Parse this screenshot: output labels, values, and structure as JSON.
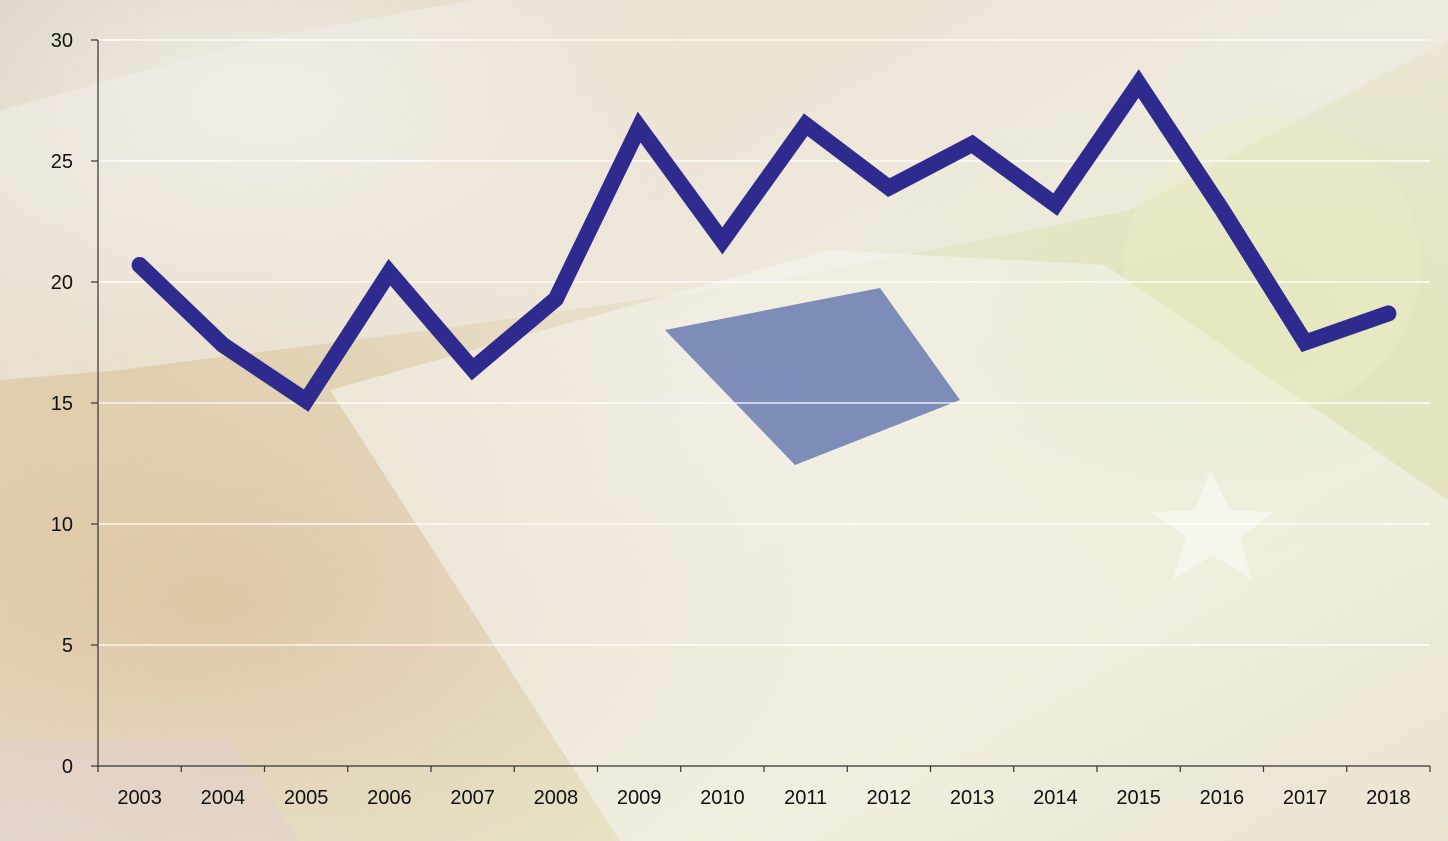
{
  "chart_data": {
    "type": "line",
    "title": "",
    "xlabel": "",
    "ylabel": "",
    "categories": [
      "2003",
      "2004",
      "2005",
      "2006",
      "2007",
      "2008",
      "2009",
      "2010",
      "2011",
      "2012",
      "2013",
      "2014",
      "2015",
      "2016",
      "2017",
      "2018"
    ],
    "series": [
      {
        "values": [
          20.7,
          17.4,
          15.1,
          20.4,
          16.4,
          19.3,
          26.4,
          21.7,
          26.5,
          23.9,
          25.7,
          23.2,
          28.2,
          23.0,
          17.5,
          18.7
        ],
        "color": "#2e2a8e"
      }
    ],
    "ylim": [
      0,
      30
    ],
    "yticks": [
      "0",
      "5",
      "10",
      "15",
      "20",
      "25",
      "30"
    ],
    "grid": true,
    "legend": "none",
    "colors": {
      "line": "#2e2a8e",
      "gridline": "#ffffff",
      "axis": "#333333",
      "background_image": "euro banknotes"
    }
  }
}
